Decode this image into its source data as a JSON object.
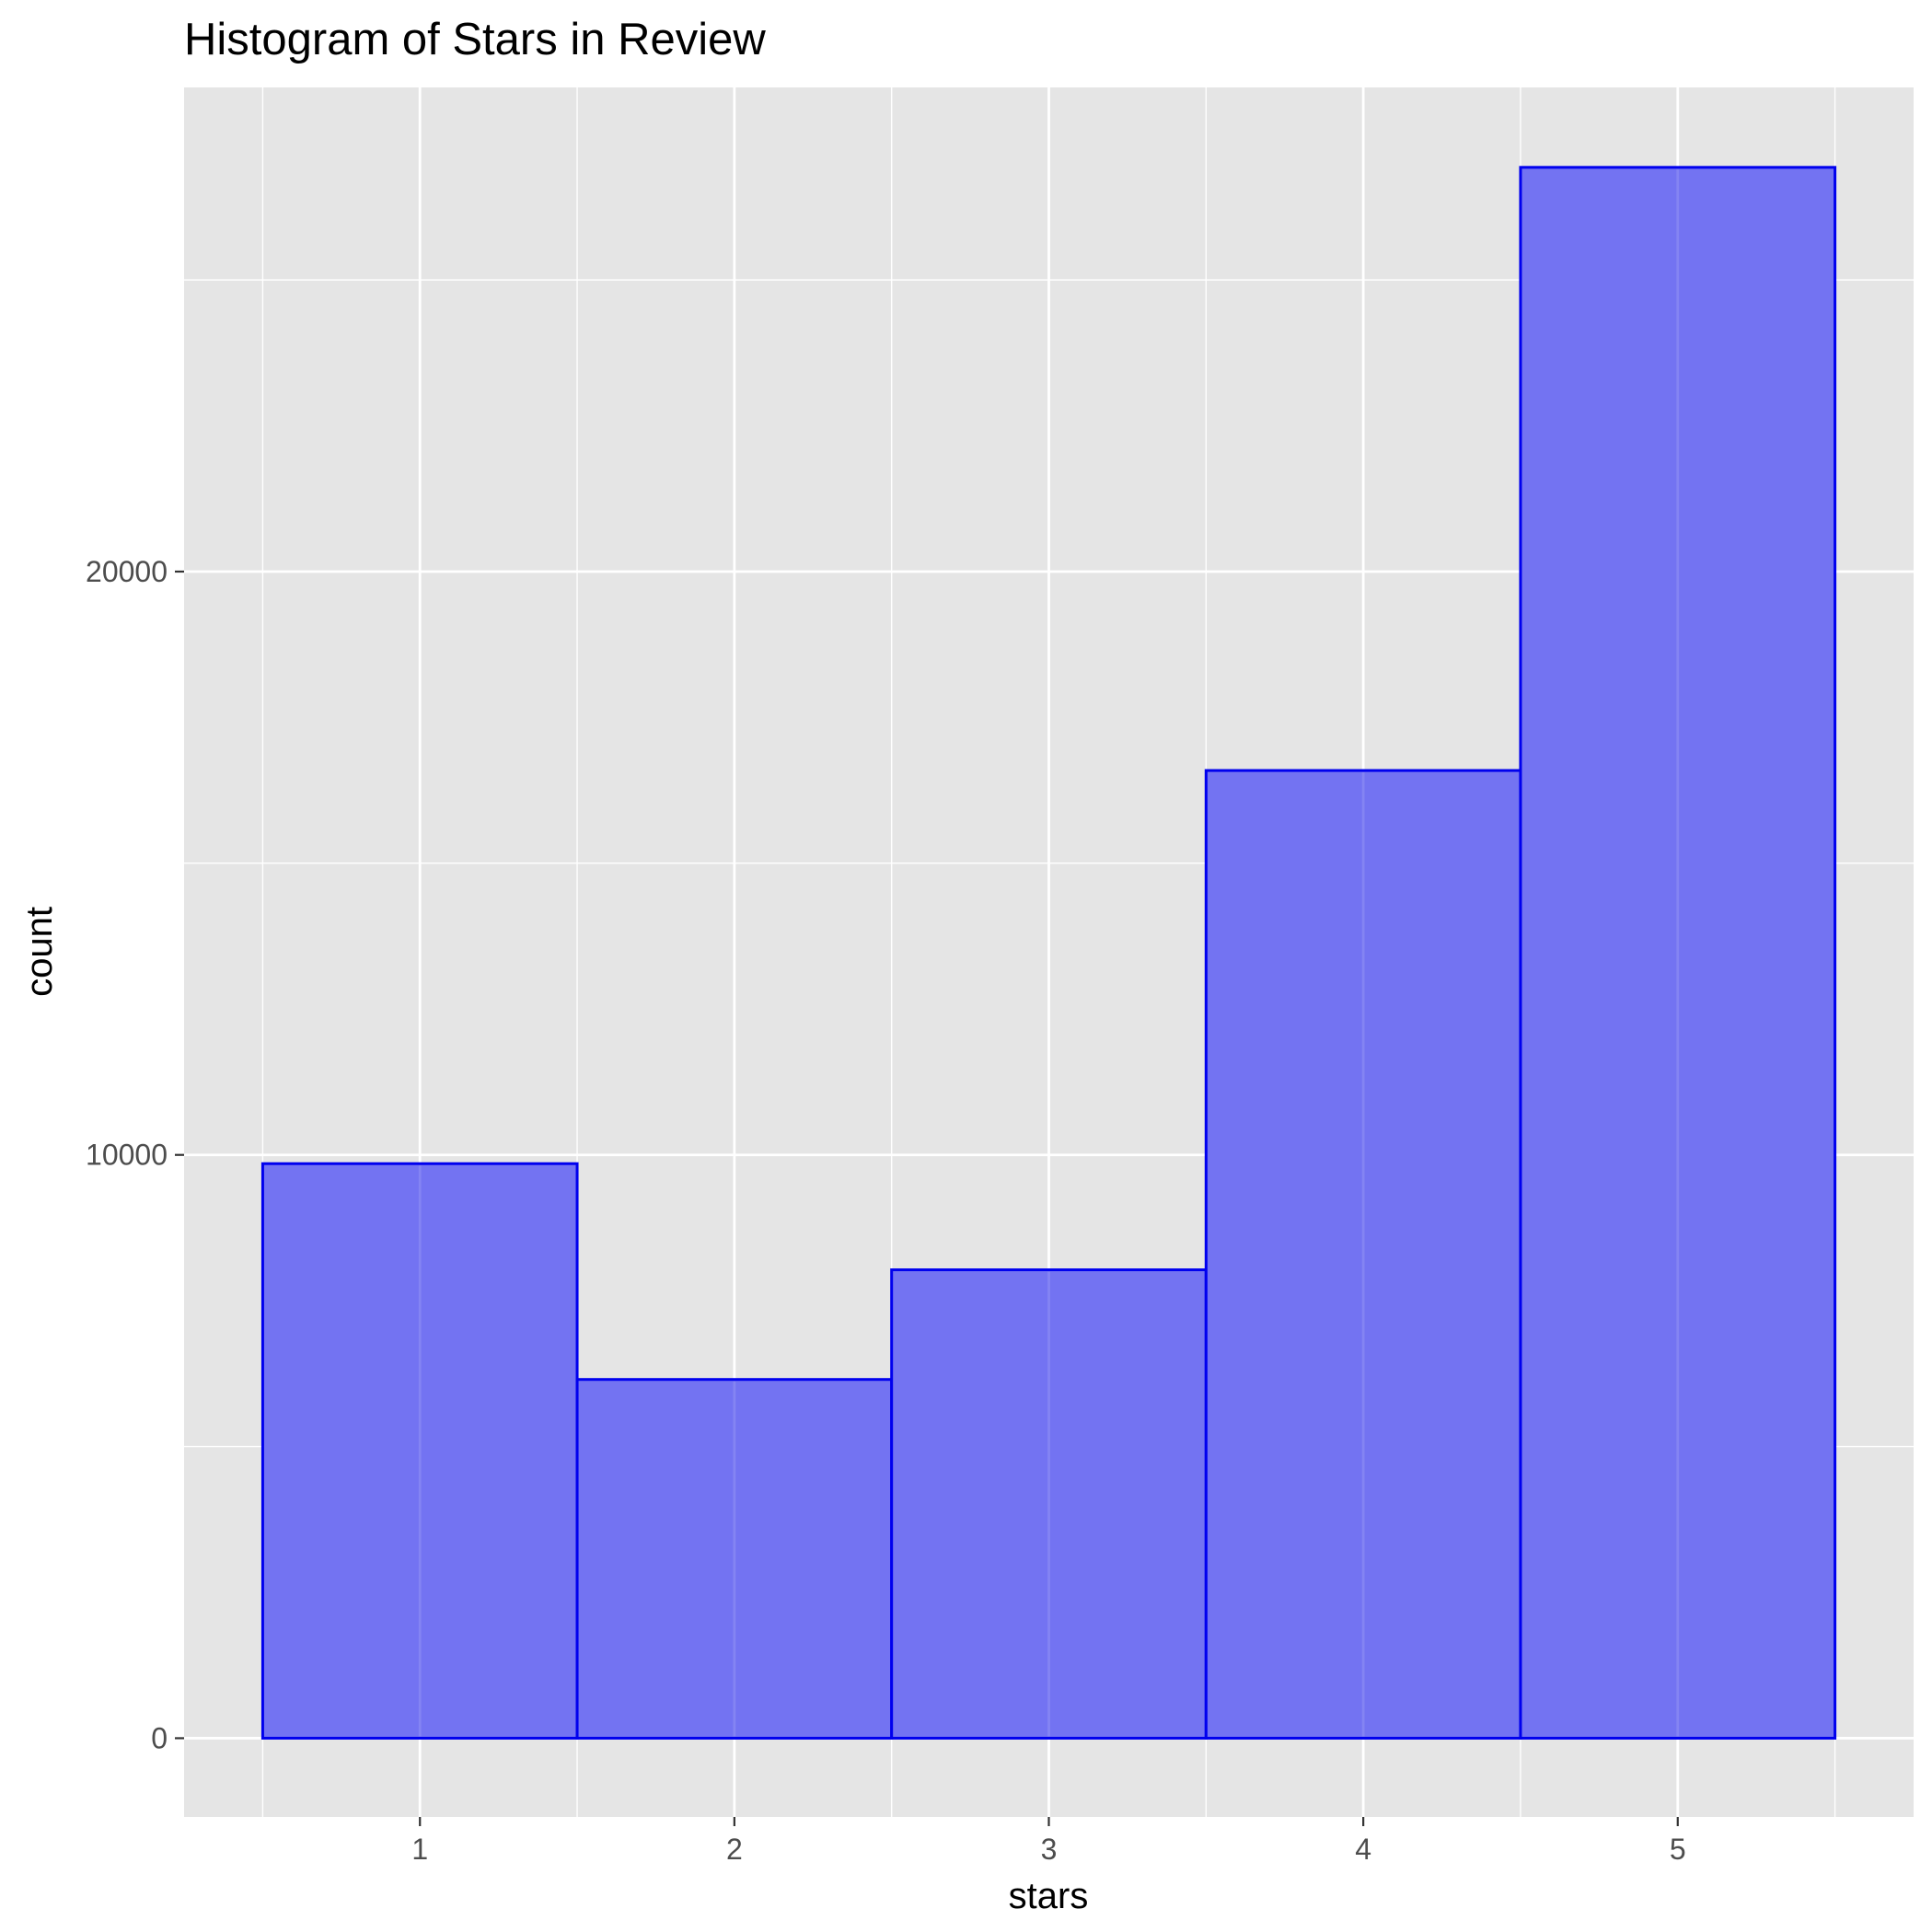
{
  "chart_data": {
    "type": "bar",
    "title": "Histogram of Stars in Review",
    "xlabel": "stars",
    "ylabel": "count",
    "categories": [
      "1",
      "2",
      "3",
      "4",
      "5"
    ],
    "bins": [
      {
        "center": 1,
        "from": 0.5,
        "to": 1.5,
        "count": 9850
      },
      {
        "center": 2,
        "from": 1.5,
        "to": 2.5,
        "count": 6150
      },
      {
        "center": 3,
        "from": 2.5,
        "to": 3.5,
        "count": 8030
      },
      {
        "center": 4,
        "from": 3.5,
        "to": 4.5,
        "count": 16590
      },
      {
        "center": 5,
        "from": 4.5,
        "to": 5.5,
        "count": 26930
      }
    ],
    "xlim": [
      0.25,
      5.75
    ],
    "ylim": [
      -1350,
      28300
    ],
    "x_ticks": [
      1,
      2,
      3,
      4,
      5
    ],
    "y_ticks": [
      0,
      10000,
      20000
    ],
    "y_minor_ticks": [
      5000,
      15000,
      25000
    ],
    "grid": true,
    "legend": "none",
    "colors": {
      "panel_background": "#e5e5e5",
      "grid": "#ffffff",
      "bar_fill": "#7373f2",
      "bar_outline": "#0000ee",
      "tick_text": "#4d4d4d",
      "tick_mark": "#333333"
    }
  }
}
